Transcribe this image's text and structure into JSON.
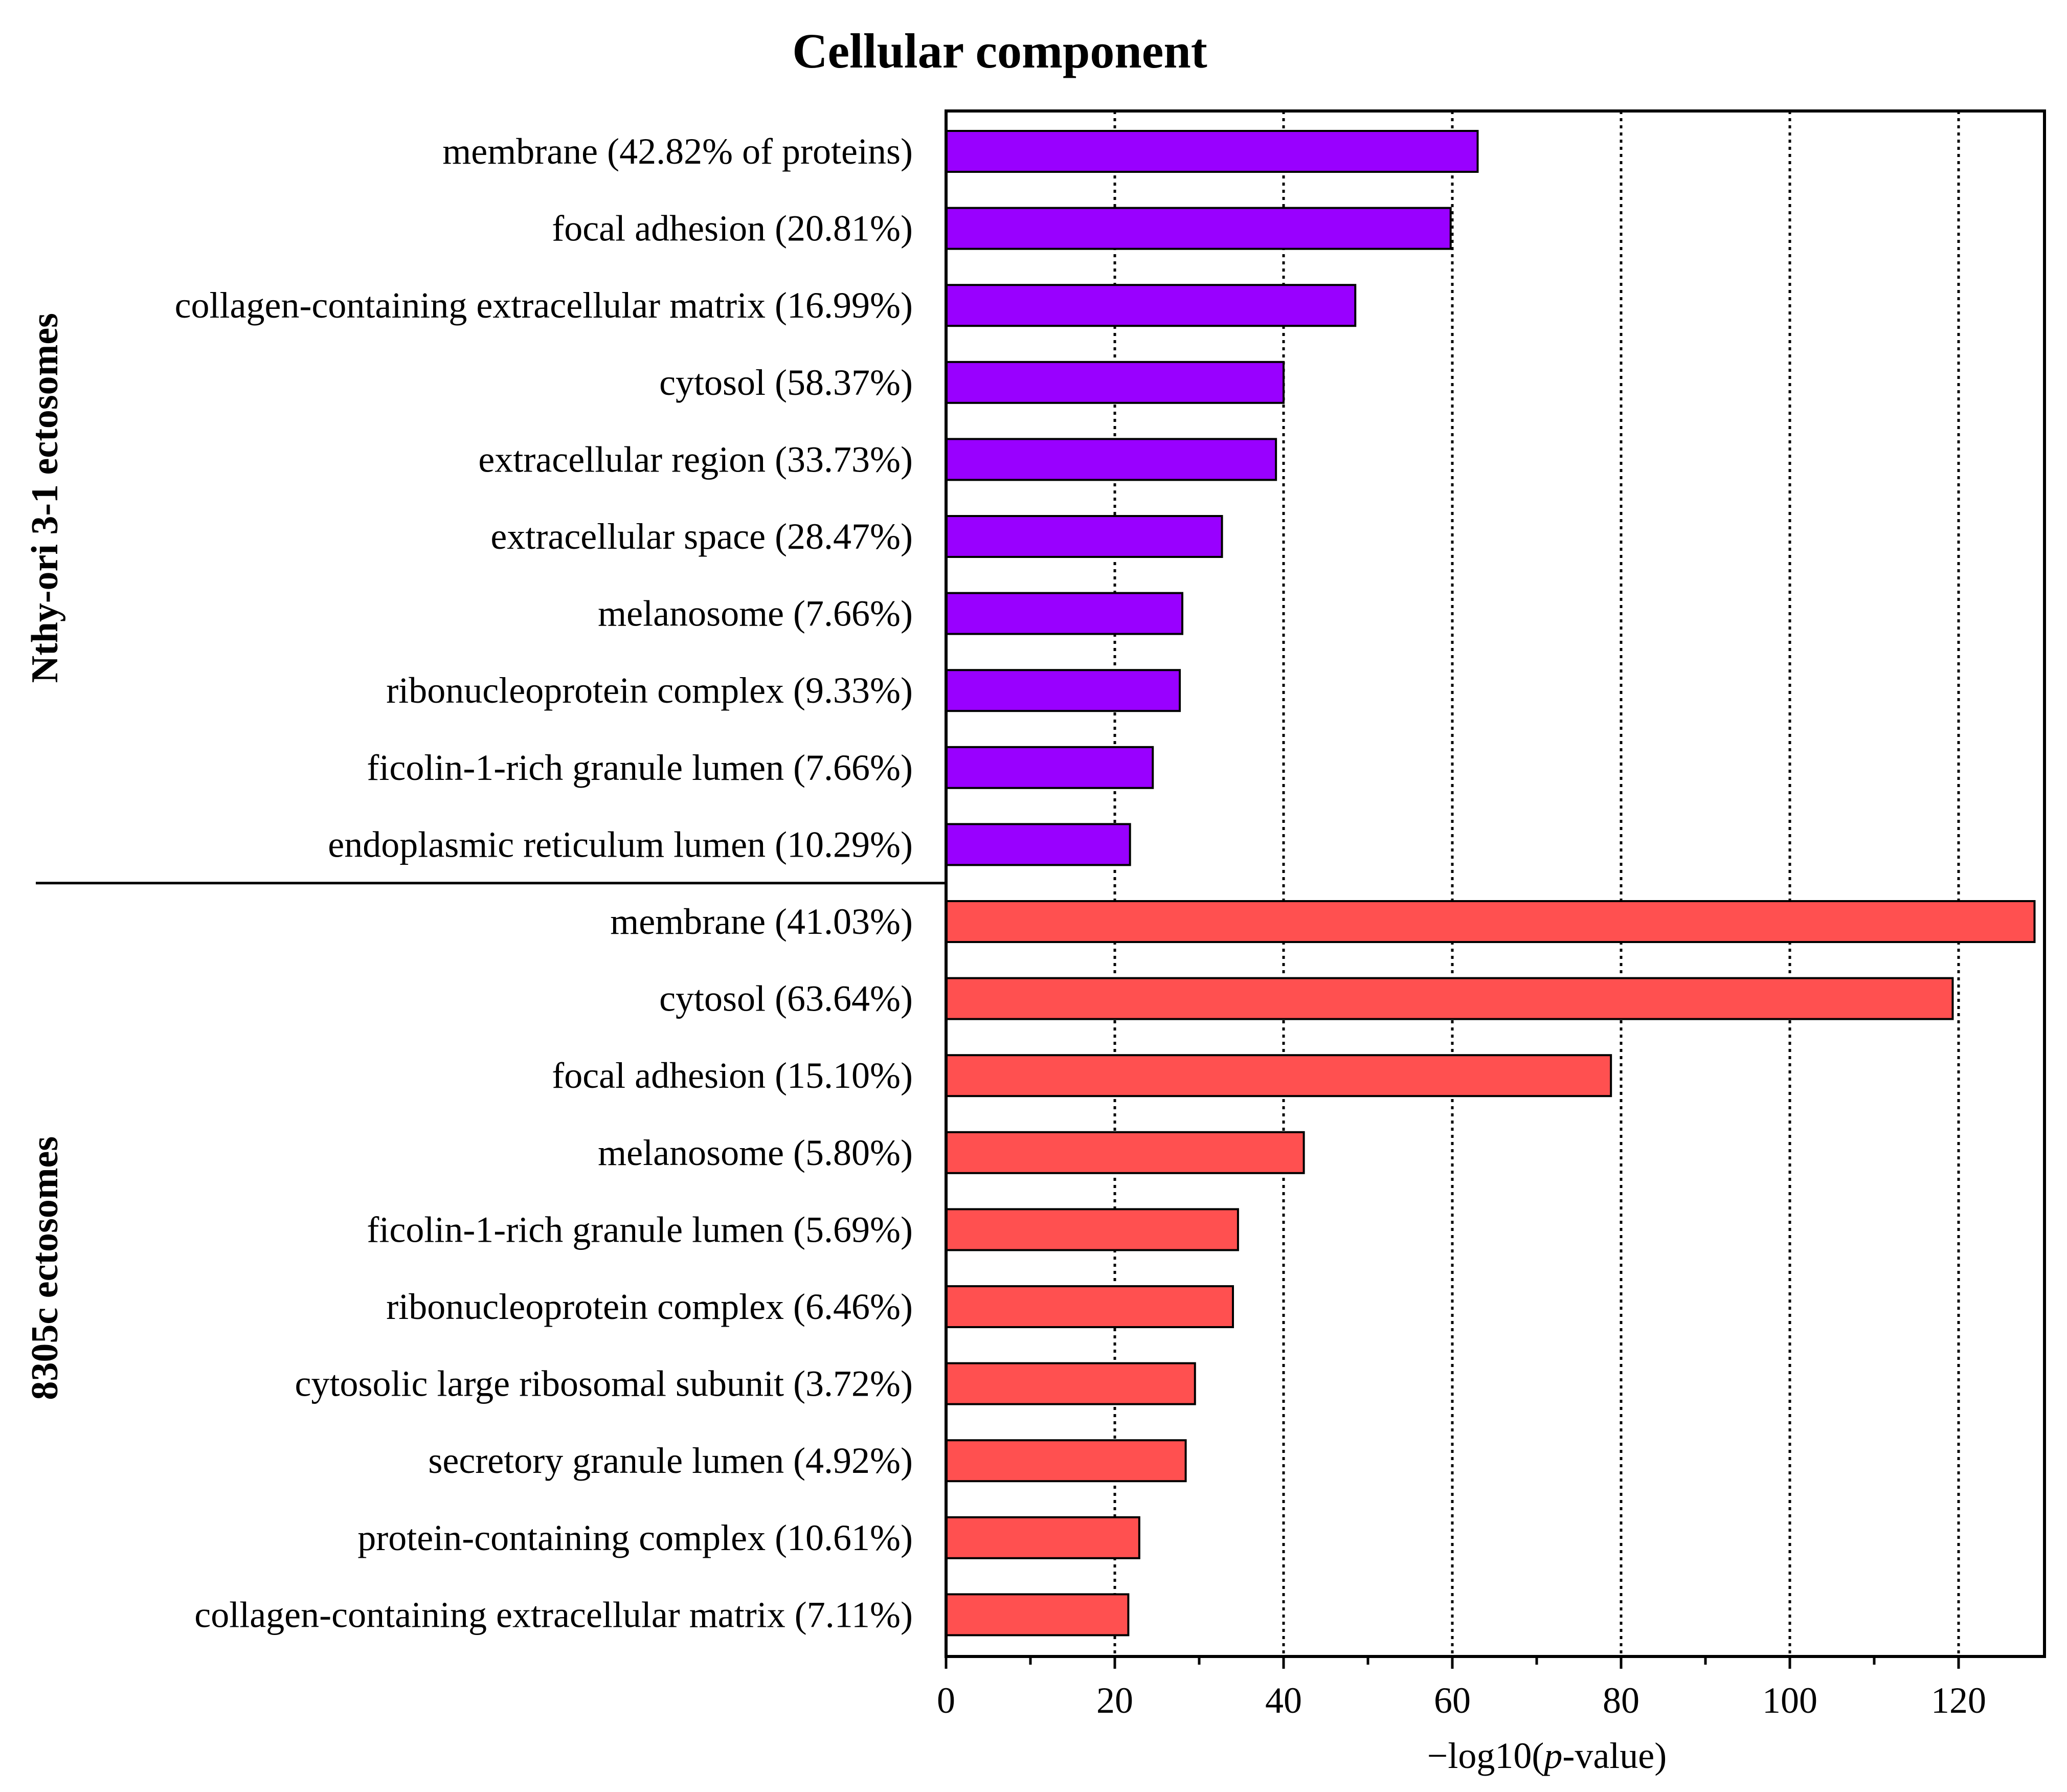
{
  "chart_data": {
    "type": "bar",
    "orientation": "horizontal",
    "title": "Cellular component",
    "xlabel_parts": [
      "−log10(",
      "p",
      "-value)"
    ],
    "xlim": [
      0,
      130
    ],
    "xticks": [
      0,
      20,
      40,
      60,
      80,
      100,
      120
    ],
    "grid": "vertical dotted at major ticks",
    "groups": [
      {
        "name": "Nthy-ori 3-1 ectosomes",
        "color": "#9900FF",
        "categories": [
          "membrane (42.82% of proteins)",
          "focal adhesion (20.81%)",
          "collagen-containing extracellular matrix (16.99%)",
          "cytosol (58.37%)",
          "extracellular region (33.73%)",
          "extracellular space (28.47%)",
          "melanosome (7.66%)",
          "ribonucleoprotein complex (9.33%)",
          "ficolin-1-rich granule lumen (7.66%)",
          "endoplasmic reticulum lumen (10.29%)"
        ],
        "values": [
          63,
          59.8,
          48.5,
          40,
          39.1,
          32.7,
          28,
          27.7,
          24.5,
          21.8
        ]
      },
      {
        "name": "8305c ectosomes",
        "color": "#FF5050",
        "categories": [
          "membrane (41.03%)",
          "cytosol (63.64%)",
          "focal adhesion (15.10%)",
          "melanosome (5.80%)",
          "ficolin-1-rich granule lumen (5.69%)",
          "ribonucleoprotein complex (6.46%)",
          "cytosolic large ribosomal subunit (3.72%)",
          "secretory granule lumen (4.92%)",
          "protein-containing complex (10.61%)",
          "collagen-containing extracellular matrix (7.11%)"
        ],
        "values": [
          129,
          119.3,
          78.8,
          42.4,
          34.6,
          34,
          29.5,
          28.4,
          22.9,
          21.6
        ]
      }
    ]
  }
}
